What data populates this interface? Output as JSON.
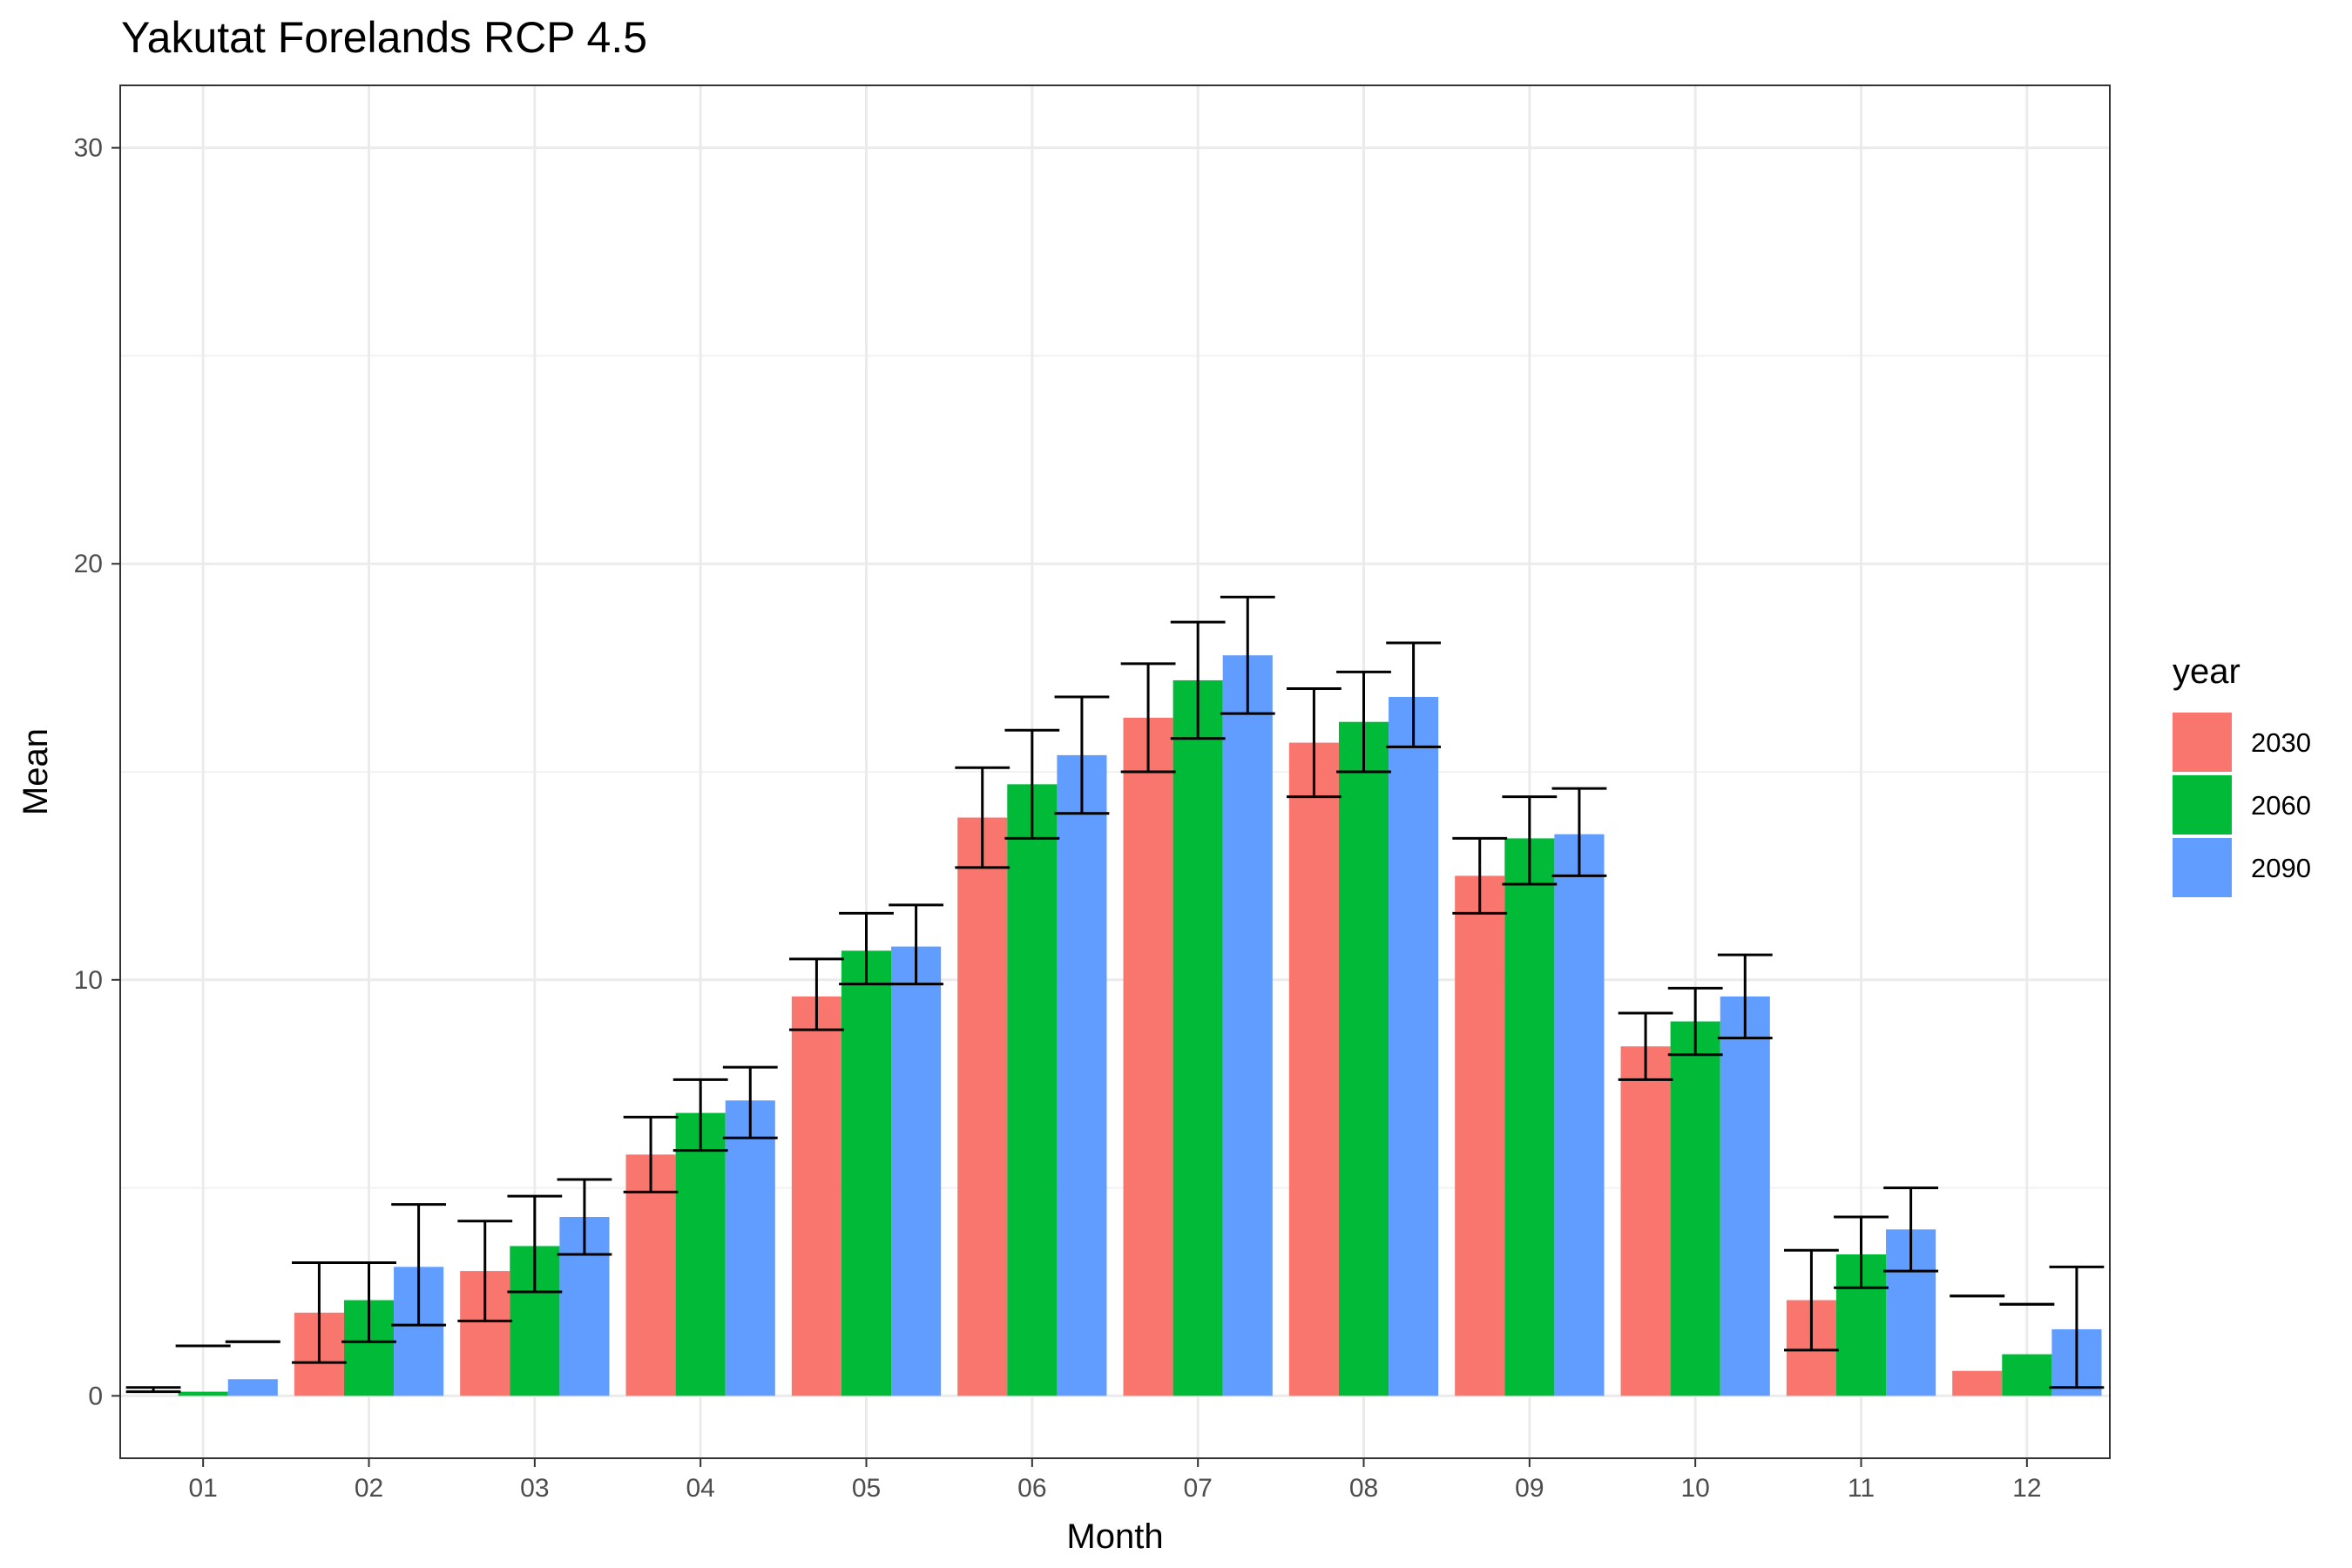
{
  "chart_data": {
    "type": "bar",
    "title": "Yakutat Forelands RCP 4.5",
    "xlabel": "Month",
    "ylabel": "Mean",
    "ylim": [
      -1.5,
      31.5
    ],
    "yticks": [
      "0",
      "10",
      "20",
      "30"
    ],
    "grid": true,
    "legend": {
      "title": "year",
      "position": "right"
    },
    "categories": [
      "01",
      "02",
      "03",
      "04",
      "05",
      "06",
      "07",
      "08",
      "09",
      "10",
      "11",
      "12"
    ],
    "series": [
      {
        "name": "2030",
        "color": "#F8766D",
        "values": [
          0.0,
          2.0,
          3.0,
          5.8,
          9.6,
          13.9,
          16.3,
          15.7,
          12.5,
          8.4,
          2.3,
          0.6
        ],
        "error_low": [
          0.1,
          0.8,
          1.8,
          4.9,
          8.8,
          12.7,
          15.0,
          14.4,
          11.6,
          7.6,
          1.1,
          2.4
        ],
        "error_high": [
          0.2,
          3.2,
          4.2,
          6.7,
          10.5,
          15.1,
          17.6,
          17.0,
          13.4,
          9.2,
          3.5,
          2.4
        ]
      },
      {
        "name": "2060",
        "color": "#00BA38",
        "values": [
          0.1,
          2.3,
          3.6,
          6.8,
          10.7,
          14.7,
          17.2,
          16.2,
          13.4,
          9.0,
          3.4,
          1.0
        ],
        "error_low": [
          1.2,
          1.3,
          2.5,
          5.9,
          9.9,
          13.4,
          15.8,
          15.0,
          12.3,
          8.2,
          2.6,
          2.2
        ],
        "error_high": [
          1.2,
          3.2,
          4.8,
          7.6,
          11.6,
          16.0,
          18.6,
          17.4,
          14.4,
          9.8,
          4.3,
          2.2
        ]
      },
      {
        "name": "2090",
        "color": "#619CFF",
        "values": [
          0.4,
          3.1,
          4.3,
          7.1,
          10.8,
          15.4,
          17.8,
          16.8,
          13.5,
          9.6,
          4.0,
          1.6
        ],
        "error_low": [
          1.3,
          1.7,
          3.4,
          6.2,
          9.9,
          14.0,
          16.4,
          15.6,
          12.5,
          8.6,
          3.0,
          0.2
        ],
        "error_high": [
          1.3,
          4.6,
          5.2,
          7.9,
          11.8,
          16.8,
          19.2,
          18.1,
          14.6,
          10.6,
          5.0,
          3.1
        ]
      }
    ]
  }
}
